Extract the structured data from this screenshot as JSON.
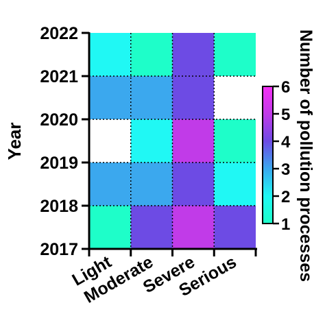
{
  "chart_data": {
    "type": "heatmap",
    "ylabel": "Year",
    "colorbar_label": "Number of pollution processes",
    "y_ticks": [
      "2017",
      "2018",
      "2019",
      "2020",
      "2021",
      "2022"
    ],
    "x_categories": [
      "Light",
      "Moderate",
      "Severe",
      "Serious"
    ],
    "rows": [
      {
        "year_span": "2017-2018",
        "values": [
          1,
          4,
          5,
          4
        ]
      },
      {
        "year_span": "2018-2019",
        "values": [
          3,
          3,
          4,
          2
        ]
      },
      {
        "year_span": "2019-2020",
        "values": [
          null,
          2,
          5,
          1
        ]
      },
      {
        "year_span": "2020-2021",
        "values": [
          3,
          3,
          4,
          null
        ]
      },
      {
        "year_span": "2021-2022",
        "values": [
          2,
          1,
          4,
          1
        ]
      }
    ],
    "colorbar": {
      "min": 1,
      "max": 6,
      "ticks": [
        1,
        2,
        3,
        4,
        5,
        6
      ],
      "colors": [
        "#1efec9",
        "#20f8f4",
        "#3ba8ee",
        "#6d4be4",
        "#c13be8",
        "#f530f5"
      ]
    },
    "missing_color": "#ffffff",
    "grid_style": "dotted"
  }
}
